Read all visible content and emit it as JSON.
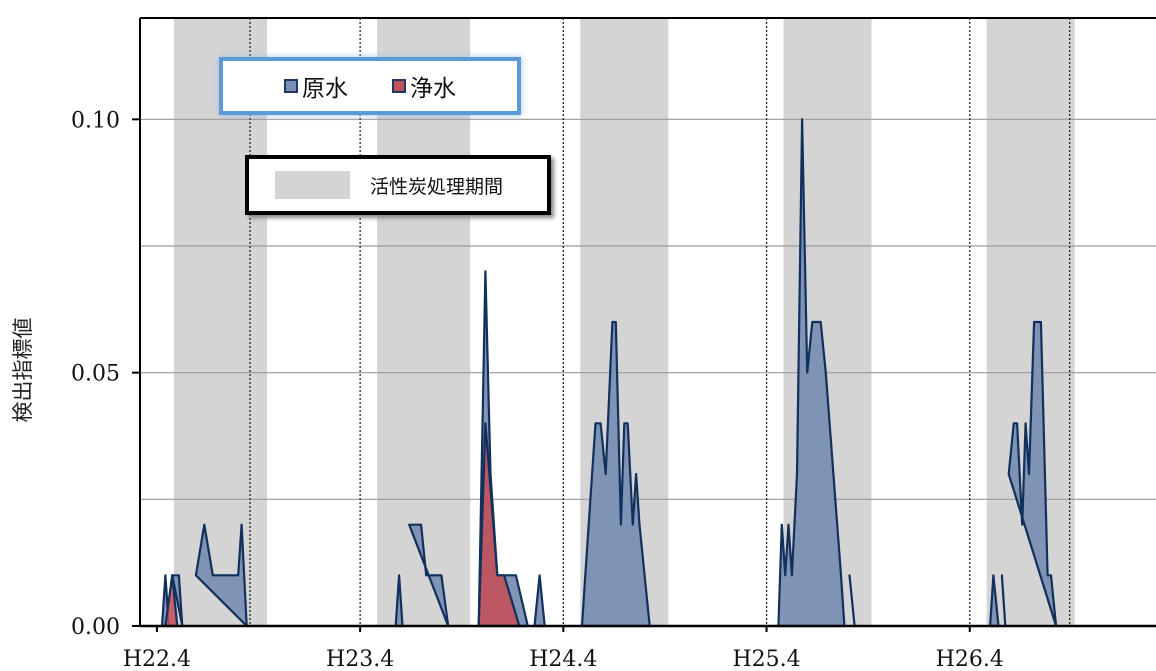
{
  "chart_data": {
    "type": "area",
    "ylabel": "検出指標値",
    "ylim": [
      0,
      0.12
    ],
    "y_ticks": [
      "0.00",
      "0.05",
      "0.10"
    ],
    "y_tick_values": [
      0,
      0.05,
      0.1
    ],
    "minor_gridlines": [
      0.025,
      0.075
    ],
    "x_ticks": [
      "H22.4",
      "H23.4",
      "H24.4",
      "H25.4",
      "H26.4"
    ],
    "x_tick_months": [
      0,
      12,
      24,
      36,
      48
    ],
    "xlim_months": [
      -1,
      59
    ],
    "shaded_periods_label": "活性炭処理期間",
    "shaded_periods_months": [
      [
        1,
        6.5
      ],
      [
        13,
        18.5
      ],
      [
        25,
        30.2
      ],
      [
        37,
        42.2
      ],
      [
        49,
        54.2
      ]
    ],
    "dotted_vlines_months": [
      5.5,
      12,
      24,
      36,
      48,
      53.9
    ],
    "series": [
      {
        "name": "原水",
        "color": "#7a8fb3",
        "line_color": "#12305c",
        "points": [
          [
            0.3,
            0
          ],
          [
            0.5,
            0.01
          ],
          [
            0.7,
            0
          ],
          [
            0.9,
            0.01
          ],
          [
            1.3,
            0.01
          ],
          [
            1.5,
            0
          ],
          [
            2.3,
            0.01
          ],
          [
            2.8,
            0.02
          ],
          [
            3.3,
            0.01
          ],
          [
            4.8,
            0.01
          ],
          [
            5.0,
            0.02
          ],
          [
            5.3,
            0
          ],
          [
            14.1,
            0
          ],
          [
            14.3,
            0.01
          ],
          [
            14.5,
            0
          ],
          [
            14.9,
            0.02
          ],
          [
            15.6,
            0.02
          ],
          [
            15.9,
            0.01
          ],
          [
            16.8,
            0.01
          ],
          [
            17.2,
            0
          ],
          [
            19.0,
            0
          ],
          [
            19.4,
            0.07
          ],
          [
            19.7,
            0.03
          ],
          [
            20.1,
            0.01
          ],
          [
            21.2,
            0.01
          ],
          [
            21.9,
            0
          ],
          [
            22.3,
            0
          ],
          [
            22.6,
            0.01
          ],
          [
            22.9,
            0
          ],
          [
            25.1,
            0
          ],
          [
            25.3,
            0.01
          ],
          [
            25.9,
            0.04
          ],
          [
            26.2,
            0.04
          ],
          [
            26.5,
            0.03
          ],
          [
            26.9,
            0.06
          ],
          [
            27.1,
            0.06
          ],
          [
            27.4,
            0.02
          ],
          [
            27.6,
            0.04
          ],
          [
            27.8,
            0.04
          ],
          [
            28.1,
            0.02
          ],
          [
            28.3,
            0.03
          ],
          [
            28.5,
            0.02
          ],
          [
            29.1,
            0
          ],
          [
            36.7,
            0
          ],
          [
            36.9,
            0.02
          ],
          [
            37.1,
            0.01
          ],
          [
            37.3,
            0.02
          ],
          [
            37.5,
            0.01
          ],
          [
            37.8,
            0.03
          ],
          [
            38.1,
            0.1
          ],
          [
            38.4,
            0.05
          ],
          [
            38.7,
            0.06
          ],
          [
            39.2,
            0.06
          ],
          [
            39.5,
            0.05
          ],
          [
            40.4,
            0.01
          ],
          [
            40.6,
            0
          ],
          [
            40.9,
            0.01
          ],
          [
            41.2,
            0
          ],
          [
            49.2,
            0
          ],
          [
            49.4,
            0.01
          ],
          [
            49.7,
            0
          ],
          [
            49.9,
            0.01
          ],
          [
            50.1,
            0
          ],
          [
            50.3,
            0.03
          ],
          [
            50.6,
            0.04
          ],
          [
            50.8,
            0.04
          ],
          [
            51.1,
            0.02
          ],
          [
            51.3,
            0.04
          ],
          [
            51.5,
            0.03
          ],
          [
            51.8,
            0.06
          ],
          [
            52.2,
            0.06
          ],
          [
            52.6,
            0.01
          ],
          [
            52.8,
            0.01
          ],
          [
            53.1,
            0
          ]
        ]
      },
      {
        "name": "浄水",
        "color": "#c0505a",
        "line_color": "#12305c",
        "points": [
          [
            0.5,
            0
          ],
          [
            0.9,
            0.01
          ],
          [
            1.2,
            0
          ],
          [
            19.0,
            0
          ],
          [
            19.4,
            0.04
          ],
          [
            20.1,
            0.01
          ],
          [
            20.5,
            0.01
          ],
          [
            21.4,
            0
          ]
        ]
      }
    ]
  }
}
